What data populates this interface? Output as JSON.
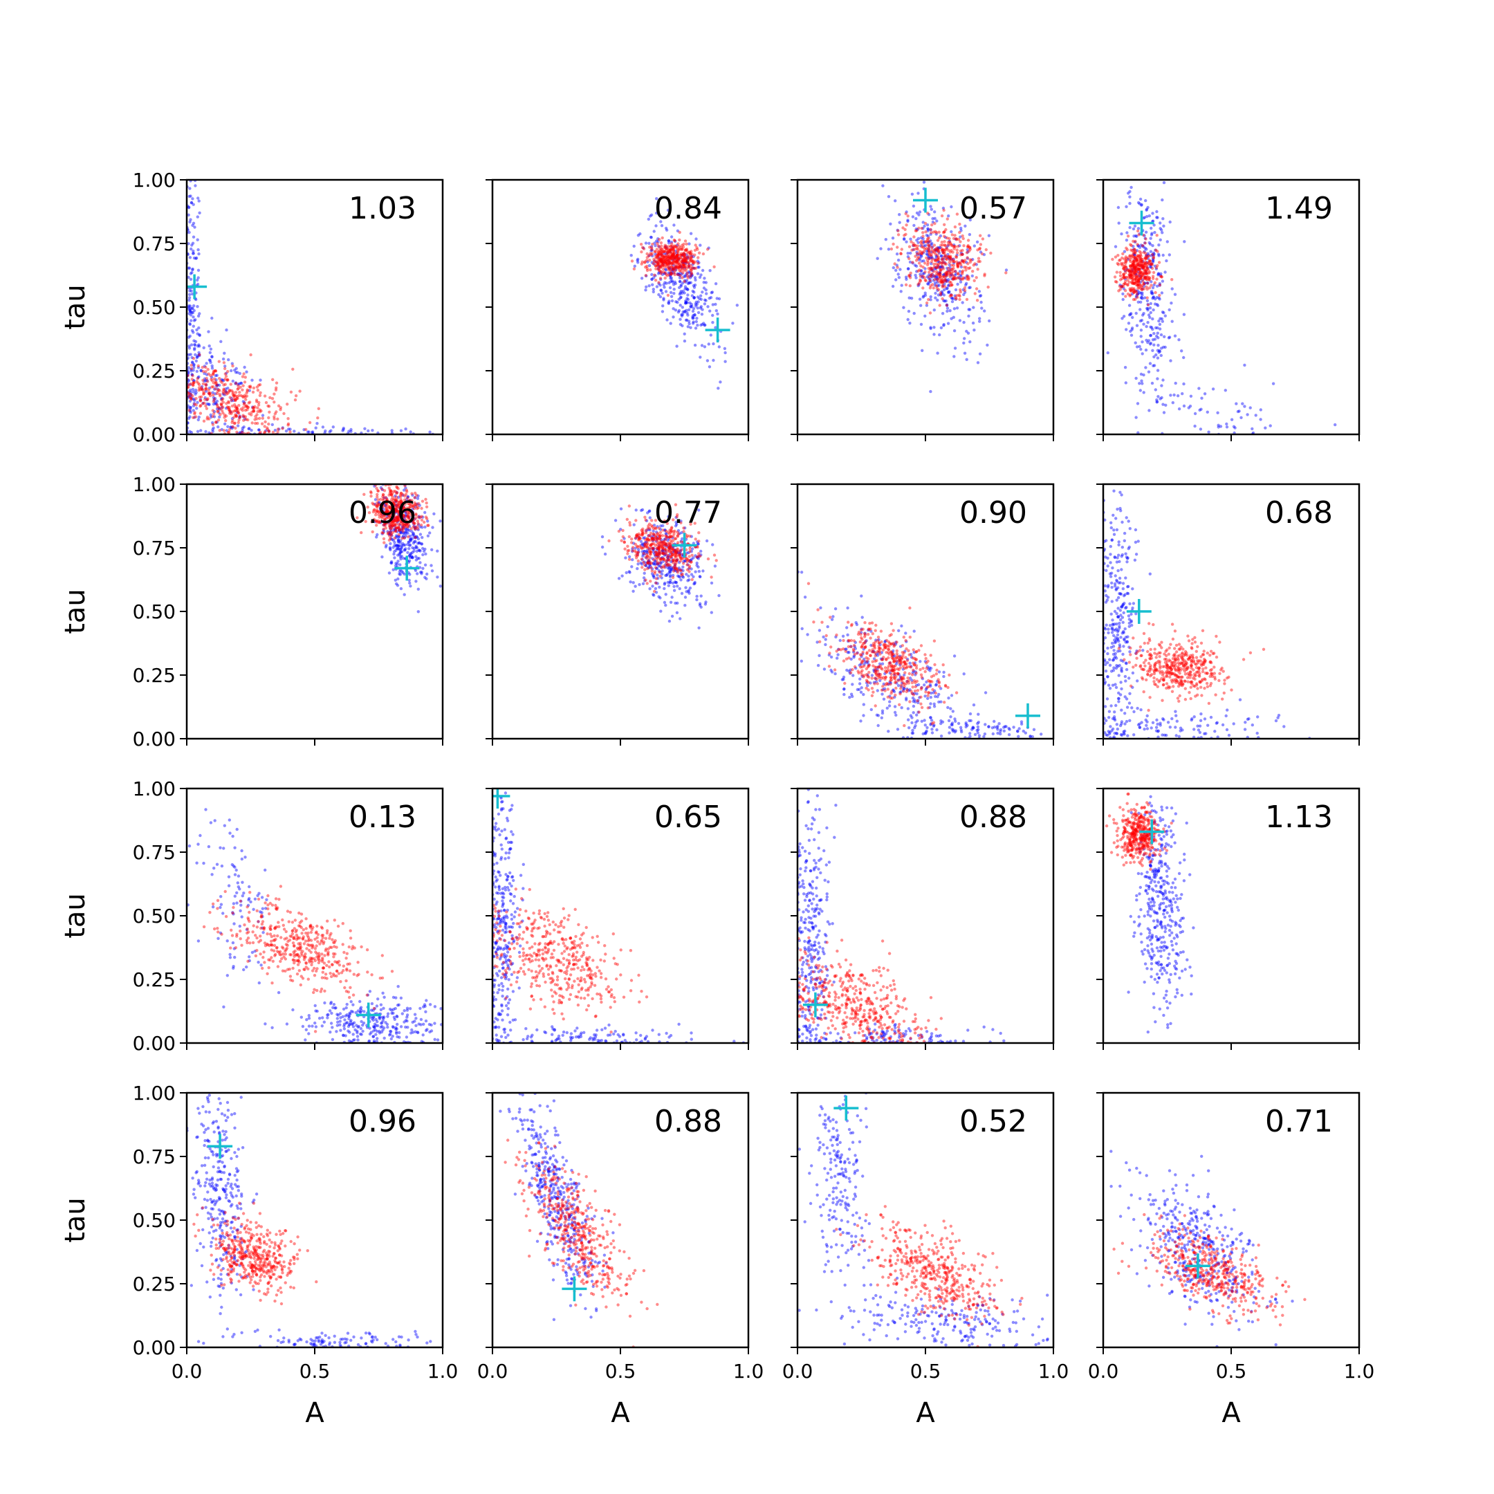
{
  "figure": {
    "rows": 4,
    "cols": 4,
    "xlabel": "A",
    "ylabel": "tau",
    "xlim": [
      0,
      1
    ],
    "ylim": [
      0,
      1
    ],
    "xtick_labels": [
      "0.0",
      "0.5",
      "1.0"
    ],
    "ytick_labels": [
      "0.00",
      "0.25",
      "0.50",
      "0.75",
      "1.00"
    ],
    "colors": {
      "series_blue": "#0000ff",
      "series_red": "#ff0000",
      "marker": "#17becf"
    }
  },
  "chart_data": [
    {
      "type": "scatter",
      "panel_label": "1.03",
      "marker": [
        0.03,
        0.58
      ],
      "series": [
        {
          "color": "#0000ff",
          "clusters": [
            {
              "cx": 0.1,
              "cy": 0.15,
              "sx": 0.09,
              "sy": 0.12,
              "rho": -0.3,
              "n": 220
            },
            {
              "cx": 0.02,
              "cy": 0.6,
              "sx": 0.015,
              "sy": 0.25,
              "rho": 0,
              "n": 150
            },
            {
              "cx": 0.6,
              "cy": 0.01,
              "sx": 0.25,
              "sy": 0.01,
              "rho": 0,
              "n": 60
            }
          ]
        },
        {
          "color": "#ff0000",
          "clusters": [
            {
              "cx": 0.17,
              "cy": 0.13,
              "sx": 0.11,
              "sy": 0.07,
              "rho": -0.4,
              "n": 380
            }
          ]
        }
      ]
    },
    {
      "type": "scatter",
      "panel_label": "0.84",
      "marker": [
        0.88,
        0.41
      ],
      "series": [
        {
          "color": "#0000ff",
          "clusters": [
            {
              "cx": 0.74,
              "cy": 0.6,
              "sx": 0.07,
              "sy": 0.12,
              "rho": -0.5,
              "n": 380
            }
          ]
        },
        {
          "color": "#ff0000",
          "clusters": [
            {
              "cx": 0.7,
              "cy": 0.69,
              "sx": 0.05,
              "sy": 0.035,
              "rho": 0,
              "n": 420
            }
          ]
        }
      ]
    },
    {
      "type": "scatter",
      "panel_label": "0.57",
      "marker": [
        0.5,
        0.92
      ],
      "series": [
        {
          "color": "#0000ff",
          "clusters": [
            {
              "cx": 0.55,
              "cy": 0.65,
              "sx": 0.08,
              "sy": 0.13,
              "rho": -0.3,
              "n": 380
            }
          ]
        },
        {
          "color": "#ff0000",
          "clusters": [
            {
              "cx": 0.57,
              "cy": 0.68,
              "sx": 0.08,
              "sy": 0.07,
              "rho": -0.2,
              "n": 420
            }
          ]
        }
      ]
    },
    {
      "type": "scatter",
      "panel_label": "1.49",
      "marker": [
        0.15,
        0.83
      ],
      "series": [
        {
          "color": "#0000ff",
          "clusters": [
            {
              "cx": 0.17,
              "cy": 0.58,
              "sx": 0.05,
              "sy": 0.2,
              "rho": -0.3,
              "n": 320
            },
            {
              "cx": 0.4,
              "cy": 0.12,
              "sx": 0.15,
              "sy": 0.08,
              "rho": -0.4,
              "n": 70
            }
          ]
        },
        {
          "color": "#ff0000",
          "clusters": [
            {
              "cx": 0.13,
              "cy": 0.64,
              "sx": 0.035,
              "sy": 0.05,
              "rho": 0,
              "n": 380
            }
          ]
        }
      ]
    },
    {
      "type": "scatter",
      "panel_label": "0.96",
      "marker": [
        0.86,
        0.67
      ],
      "series": [
        {
          "color": "#0000ff",
          "clusters": [
            {
              "cx": 0.85,
              "cy": 0.8,
              "sx": 0.05,
              "sy": 0.1,
              "rho": -0.3,
              "n": 360
            }
          ]
        },
        {
          "color": "#ff0000",
          "clusters": [
            {
              "cx": 0.82,
              "cy": 0.89,
              "sx": 0.05,
              "sy": 0.05,
              "rho": 0,
              "n": 420
            }
          ]
        }
      ]
    },
    {
      "type": "scatter",
      "panel_label": "0.77",
      "marker": [
        0.75,
        0.76
      ],
      "series": [
        {
          "color": "#0000ff",
          "clusters": [
            {
              "cx": 0.68,
              "cy": 0.7,
              "sx": 0.08,
              "sy": 0.09,
              "rho": -0.3,
              "n": 380
            }
          ]
        },
        {
          "color": "#ff0000",
          "clusters": [
            {
              "cx": 0.66,
              "cy": 0.75,
              "sx": 0.07,
              "sy": 0.05,
              "rho": -0.2,
              "n": 420
            }
          ]
        }
      ]
    },
    {
      "type": "scatter",
      "panel_label": "0.90",
      "marker": [
        0.9,
        0.09
      ],
      "series": [
        {
          "color": "#0000ff",
          "clusters": [
            {
              "cx": 0.35,
              "cy": 0.25,
              "sx": 0.15,
              "sy": 0.12,
              "rho": -0.6,
              "n": 300
            },
            {
              "cx": 0.7,
              "cy": 0.04,
              "sx": 0.15,
              "sy": 0.02,
              "rho": 0,
              "n": 100
            }
          ]
        },
        {
          "color": "#ff0000",
          "clusters": [
            {
              "cx": 0.35,
              "cy": 0.3,
              "sx": 0.1,
              "sy": 0.08,
              "rho": -0.5,
              "n": 420
            }
          ]
        }
      ]
    },
    {
      "type": "scatter",
      "panel_label": "0.68",
      "marker": [
        0.14,
        0.5
      ],
      "series": [
        {
          "color": "#0000ff",
          "clusters": [
            {
              "cx": 0.06,
              "cy": 0.45,
              "sx": 0.04,
              "sy": 0.25,
              "rho": 0,
              "n": 300
            },
            {
              "cx": 0.3,
              "cy": 0.05,
              "sx": 0.2,
              "sy": 0.04,
              "rho": 0,
              "n": 100
            }
          ]
        },
        {
          "color": "#ff0000",
          "clusters": [
            {
              "cx": 0.28,
              "cy": 0.28,
              "sx": 0.09,
              "sy": 0.055,
              "rho": -0.2,
              "n": 420
            }
          ]
        }
      ]
    },
    {
      "type": "scatter",
      "panel_label": "0.13",
      "marker": [
        0.71,
        0.11
      ],
      "series": [
        {
          "color": "#0000ff",
          "clusters": [
            {
              "cx": 0.72,
              "cy": 0.08,
              "sx": 0.14,
              "sy": 0.05,
              "rho": -0.2,
              "n": 300
            },
            {
              "cx": 0.2,
              "cy": 0.55,
              "sx": 0.07,
              "sy": 0.18,
              "rho": -0.5,
              "n": 100
            }
          ]
        },
        {
          "color": "#ff0000",
          "clusters": [
            {
              "cx": 0.43,
              "cy": 0.38,
              "sx": 0.12,
              "sy": 0.08,
              "rho": -0.5,
              "n": 420
            }
          ]
        }
      ]
    },
    {
      "type": "scatter",
      "panel_label": "0.65",
      "marker": [
        0.02,
        0.97
      ],
      "series": [
        {
          "color": "#0000ff",
          "clusters": [
            {
              "cx": 0.04,
              "cy": 0.5,
              "sx": 0.03,
              "sy": 0.28,
              "rho": 0,
              "n": 300
            },
            {
              "cx": 0.4,
              "cy": 0.02,
              "sx": 0.2,
              "sy": 0.02,
              "rho": 0,
              "n": 100
            }
          ]
        },
        {
          "color": "#ff0000",
          "clusters": [
            {
              "cx": 0.25,
              "cy": 0.33,
              "sx": 0.13,
              "sy": 0.1,
              "rho": -0.4,
              "n": 420
            }
          ]
        }
      ]
    },
    {
      "type": "scatter",
      "panel_label": "0.88",
      "marker": [
        0.07,
        0.15
      ],
      "series": [
        {
          "color": "#0000ff",
          "clusters": [
            {
              "cx": 0.05,
              "cy": 0.4,
              "sx": 0.035,
              "sy": 0.28,
              "rho": 0,
              "n": 300
            },
            {
              "cx": 0.4,
              "cy": 0.02,
              "sx": 0.2,
              "sy": 0.02,
              "rho": 0,
              "n": 100
            }
          ]
        },
        {
          "color": "#ff0000",
          "clusters": [
            {
              "cx": 0.22,
              "cy": 0.15,
              "sx": 0.13,
              "sy": 0.09,
              "rho": -0.4,
              "n": 420
            }
          ]
        }
      ]
    },
    {
      "type": "scatter",
      "panel_label": "1.13",
      "marker": [
        0.19,
        0.83
      ],
      "series": [
        {
          "color": "#0000ff",
          "clusters": [
            {
              "cx": 0.22,
              "cy": 0.55,
              "sx": 0.05,
              "sy": 0.2,
              "rho": -0.2,
              "n": 380
            }
          ]
        },
        {
          "color": "#ff0000",
          "clusters": [
            {
              "cx": 0.14,
              "cy": 0.82,
              "sx": 0.04,
              "sy": 0.05,
              "rho": 0,
              "n": 400
            }
          ]
        }
      ]
    },
    {
      "type": "scatter",
      "panel_label": "0.96",
      "marker": [
        0.13,
        0.79
      ],
      "series": [
        {
          "color": "#0000ff",
          "clusters": [
            {
              "cx": 0.13,
              "cy": 0.6,
              "sx": 0.05,
              "sy": 0.22,
              "rho": -0.3,
              "n": 300
            },
            {
              "cx": 0.6,
              "cy": 0.03,
              "sx": 0.2,
              "sy": 0.02,
              "rho": 0,
              "n": 100
            }
          ]
        },
        {
          "color": "#ff0000",
          "clusters": [
            {
              "cx": 0.26,
              "cy": 0.36,
              "sx": 0.08,
              "sy": 0.07,
              "rho": -0.3,
              "n": 420
            }
          ]
        }
      ]
    },
    {
      "type": "scatter",
      "panel_label": "0.88",
      "marker": [
        0.32,
        0.23
      ],
      "series": [
        {
          "color": "#0000ff",
          "clusters": [
            {
              "cx": 0.25,
              "cy": 0.6,
              "sx": 0.08,
              "sy": 0.2,
              "rho": -0.75,
              "n": 400
            }
          ]
        },
        {
          "color": "#ff0000",
          "clusters": [
            {
              "cx": 0.33,
              "cy": 0.45,
              "sx": 0.1,
              "sy": 0.14,
              "rho": -0.7,
              "n": 420
            }
          ]
        }
      ]
    },
    {
      "type": "scatter",
      "panel_label": "0.52",
      "marker": [
        0.19,
        0.94
      ],
      "series": [
        {
          "color": "#0000ff",
          "clusters": [
            {
              "cx": 0.17,
              "cy": 0.65,
              "sx": 0.05,
              "sy": 0.2,
              "rho": -0.3,
              "n": 200
            },
            {
              "cx": 0.6,
              "cy": 0.1,
              "sx": 0.2,
              "sy": 0.05,
              "rho": -0.3,
              "n": 200
            }
          ]
        },
        {
          "color": "#ff0000",
          "clusters": [
            {
              "cx": 0.53,
              "cy": 0.3,
              "sx": 0.12,
              "sy": 0.09,
              "rho": -0.5,
              "n": 420
            }
          ]
        }
      ]
    },
    {
      "type": "scatter",
      "panel_label": "0.71",
      "marker": [
        0.37,
        0.32
      ],
      "series": [
        {
          "color": "#0000ff",
          "clusters": [
            {
              "cx": 0.38,
              "cy": 0.38,
              "sx": 0.12,
              "sy": 0.14,
              "rho": -0.5,
              "n": 380
            }
          ]
        },
        {
          "color": "#ff0000",
          "clusters": [
            {
              "cx": 0.42,
              "cy": 0.3,
              "sx": 0.13,
              "sy": 0.08,
              "rho": -0.6,
              "n": 420
            }
          ]
        }
      ]
    }
  ]
}
